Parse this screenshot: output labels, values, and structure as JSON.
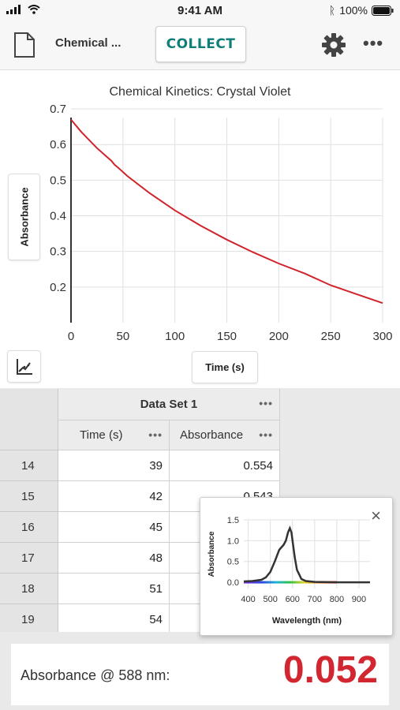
{
  "status_bar": {
    "time": "9:41 AM",
    "battery": "100%"
  },
  "toolbar": {
    "doc_title": "Chemical ...",
    "collect_label": "COLLECT",
    "more_label": "•••"
  },
  "graph": {
    "axis_y_label": "Absorbance",
    "axis_x_label": "Time (s)"
  },
  "chart_data": [
    {
      "type": "line",
      "title": "Chemical Kinetics: Crystal Violet",
      "xlabel": "Time (s)",
      "ylabel": "Absorbance",
      "xlim": [
        0,
        300
      ],
      "ylim": [
        0.1,
        0.72
      ],
      "x_ticks": [
        0,
        50,
        100,
        150,
        200,
        250,
        300
      ],
      "y_ticks": [
        0.2,
        0.3,
        0.4,
        0.5,
        0.6,
        0.7
      ],
      "grid": true,
      "series": [
        {
          "color": "#d0232c",
          "x": [
            0,
            10,
            25,
            39,
            42,
            45,
            48,
            51,
            54,
            75,
            100,
            125,
            150,
            175,
            200,
            225,
            250,
            275,
            300
          ],
          "y": [
            0.67,
            0.635,
            0.59,
            0.554,
            0.543,
            0.536,
            0.528,
            0.52,
            0.512,
            0.465,
            0.415,
            0.372,
            0.333,
            0.298,
            0.266,
            0.238,
            0.205,
            0.18,
            0.155
          ]
        }
      ]
    },
    {
      "type": "line",
      "title": "",
      "xlabel": "Wavelength (nm)",
      "ylabel": "Absorbance",
      "xlim": [
        380,
        950
      ],
      "ylim": [
        -0.15,
        1.5
      ],
      "x_ticks": [
        400,
        500,
        600,
        700,
        800,
        900
      ],
      "y_ticks": [
        0.0,
        0.5,
        1.0,
        1.5
      ],
      "grid": true,
      "series": [
        {
          "color": "#333333",
          "x": [
            380,
            420,
            460,
            480,
            500,
            520,
            540,
            560,
            570,
            580,
            588,
            595,
            600,
            610,
            620,
            640,
            660,
            700,
            800,
            950
          ],
          "y": [
            0.02,
            0.03,
            0.06,
            0.12,
            0.25,
            0.5,
            0.78,
            0.9,
            1.0,
            1.2,
            1.3,
            1.2,
            1.0,
            0.6,
            0.3,
            0.08,
            0.03,
            0.01,
            0.0,
            0.0
          ]
        }
      ]
    }
  ],
  "table": {
    "dataset_name": "Data Set 1",
    "columns": [
      "Time (s)",
      "Absorbance"
    ],
    "menu_dots": "•••",
    "rows": [
      {
        "index": "14",
        "time": "39",
        "absorbance": "0.554"
      },
      {
        "index": "15",
        "time": "42",
        "absorbance": "0.543"
      },
      {
        "index": "16",
        "time": "45",
        "absorbance": ""
      },
      {
        "index": "17",
        "time": "48",
        "absorbance": ""
      },
      {
        "index": "18",
        "time": "51",
        "absorbance": ""
      },
      {
        "index": "19",
        "time": "54",
        "absorbance": ""
      }
    ]
  },
  "popup": {
    "close_icon": "×"
  },
  "readout": {
    "label": "Absorbance @ 588 nm:",
    "value": "0.052"
  }
}
